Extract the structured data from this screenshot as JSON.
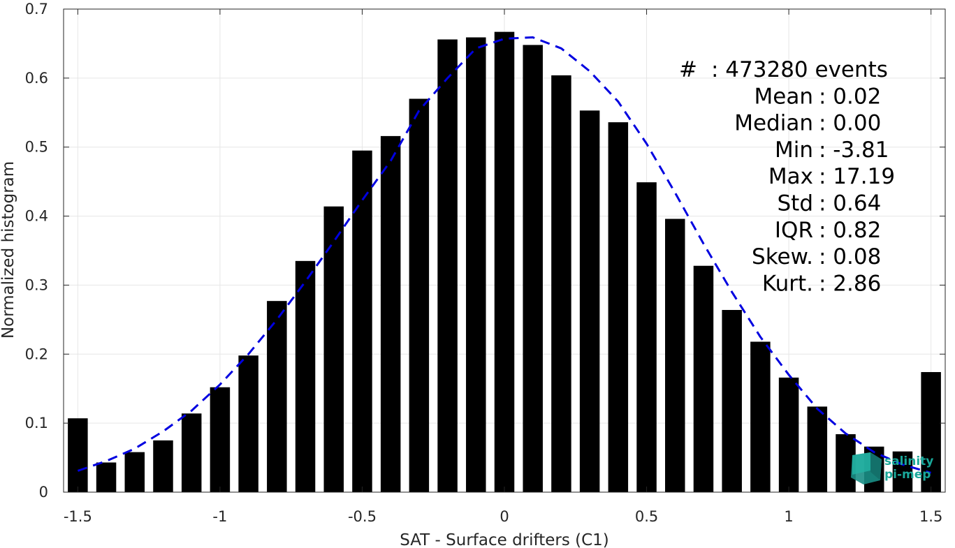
{
  "chart_data": {
    "type": "bar",
    "xlabel": "SAT - Surface drifters (C1)",
    "ylabel": "Normalized histogram",
    "xlim": [
      -1.55,
      1.55
    ],
    "ylim": [
      0,
      0.7
    ],
    "grid": true,
    "x_ticks": [
      "-1.5",
      "-1",
      "-0.5",
      "0",
      "0.5",
      "1",
      "1.5"
    ],
    "y_ticks": [
      "0",
      "0.1",
      "0.2",
      "0.3",
      "0.4",
      "0.5",
      "0.6",
      "0.7"
    ],
    "bar_width": 0.07,
    "bar_color": "#000000",
    "bars": {
      "x": [
        -1.5,
        -1.4,
        -1.3,
        -1.2,
        -1.1,
        -1.0,
        -0.9,
        -0.8,
        -0.7,
        -0.6,
        -0.5,
        -0.4,
        -0.3,
        -0.2,
        -0.1,
        0.0,
        0.1,
        0.2,
        0.3,
        0.4,
        0.5,
        0.6,
        0.7,
        0.8,
        0.9,
        1.0,
        1.1,
        1.2,
        1.3,
        1.4,
        1.5
      ],
      "values": [
        0.107,
        0.043,
        0.058,
        0.075,
        0.114,
        0.152,
        0.198,
        0.277,
        0.335,
        0.414,
        0.495,
        0.516,
        0.57,
        0.656,
        0.659,
        0.667,
        0.648,
        0.604,
        0.553,
        0.536,
        0.449,
        0.396,
        0.328,
        0.264,
        0.218,
        0.166,
        0.124,
        0.084,
        0.066,
        0.059,
        0.174
      ]
    },
    "fit_curve": {
      "style": "dashed",
      "color": "#0000e0",
      "x": [
        -1.5,
        -1.4,
        -1.3,
        -1.2,
        -1.1,
        -1.0,
        -0.9,
        -0.8,
        -0.7,
        -0.6,
        -0.5,
        -0.4,
        -0.3,
        -0.2,
        -0.1,
        0.0,
        0.1,
        0.2,
        0.3,
        0.4,
        0.5,
        0.6,
        0.7,
        0.8,
        0.9,
        1.0,
        1.1,
        1.2,
        1.3,
        1.4,
        1.5
      ],
      "y": [
        0.031,
        0.045,
        0.063,
        0.088,
        0.118,
        0.156,
        0.2,
        0.25,
        0.305,
        0.363,
        0.423,
        0.48,
        0.553,
        0.6,
        0.643,
        0.657,
        0.659,
        0.643,
        0.61,
        0.566,
        0.505,
        0.434,
        0.36,
        0.29,
        0.225,
        0.17,
        0.121,
        0.085,
        0.058,
        0.04,
        0.028
      ]
    },
    "stats": [
      {
        "label": "#",
        "sep": ":",
        "value": "473280 events"
      },
      {
        "label": "Mean",
        "sep": ":",
        "value": "0.02"
      },
      {
        "label": "Median",
        "sep": ":",
        "value": "0.00"
      },
      {
        "label": "Min",
        "sep": ":",
        "value": "-3.81"
      },
      {
        "label": "Max",
        "sep": ":",
        "value": "17.19"
      },
      {
        "label": "Std",
        "sep": ":",
        "value": "0.64"
      },
      {
        "label": "IQR",
        "sep": ":",
        "value": "0.82"
      },
      {
        "label": "Skew.",
        "sep": ":",
        "value": "0.08"
      },
      {
        "label": "Kurt.",
        "sep": ":",
        "value": "2.86"
      }
    ]
  },
  "logo": {
    "line1": "salinity",
    "line2": "pi-mep"
  }
}
